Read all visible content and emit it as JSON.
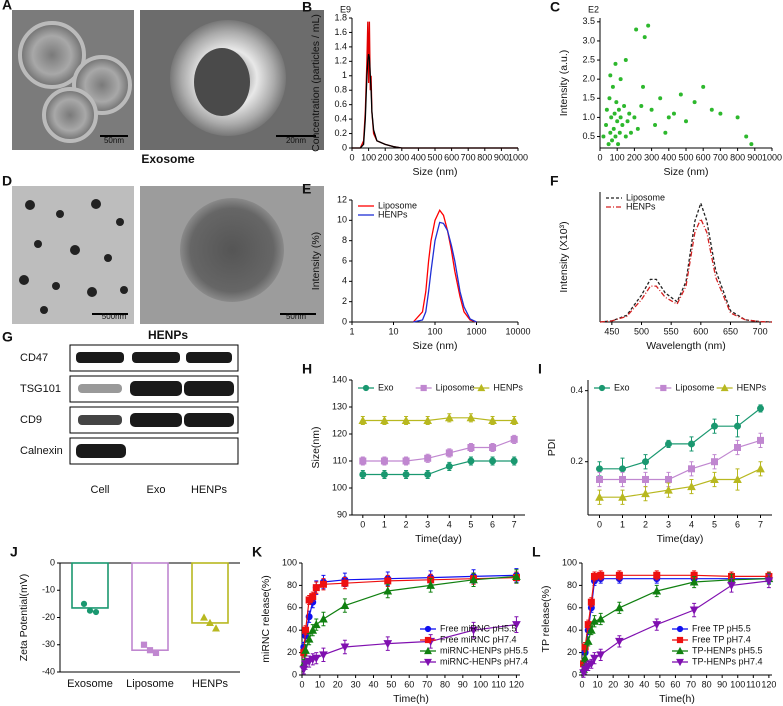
{
  "images": [
    {
      "label": "A",
      "caption": "Exosome",
      "scale_bars": [
        "50nm",
        "20nm"
      ]
    },
    {
      "label": "D",
      "caption": "HENPs",
      "scale_bars": [
        "500nm",
        "50nm"
      ]
    }
  ],
  "western_blot": {
    "label": "G",
    "proteins": [
      "CD47",
      "TSG101",
      "CD9",
      "Calnexin"
    ],
    "lanes": [
      "Cell",
      "Exo",
      "HENPs"
    ]
  },
  "chart_data": [
    {
      "type": "line",
      "label": "B",
      "axis_note": "E9",
      "xlabel": "Size (nm)",
      "ylabel": "Concentration (particles / mL)",
      "x": [
        0,
        50,
        70,
        80,
        90,
        95,
        100,
        105,
        110,
        115,
        120,
        130,
        150,
        200,
        250,
        300,
        1000
      ],
      "series": [
        {
          "name": null,
          "color": "#e00000",
          "values": [
            0,
            0,
            0.1,
            0.5,
            1.2,
            1.75,
            0.9,
            1.75,
            0.8,
            1.0,
            0.5,
            0.2,
            0.1,
            0.05,
            0.02,
            0,
            0
          ]
        },
        {
          "name": null,
          "color": "#000000",
          "values": [
            0,
            0,
            0.05,
            0.4,
            1.0,
            1.2,
            1.3,
            1.25,
            1.0,
            0.8,
            0.5,
            0.25,
            0.1,
            0.05,
            0.02,
            0,
            0
          ]
        }
      ],
      "xlim": [
        0,
        1000
      ],
      "xticks": [
        0,
        100,
        200,
        300,
        400,
        500,
        600,
        700,
        800,
        900,
        1000
      ],
      "ylim": [
        0,
        1.8
      ],
      "yticks": [
        0,
        0.2,
        0.4,
        0.6,
        0.8,
        1,
        1.2,
        1.4,
        1.6,
        1.8
      ]
    },
    {
      "type": "scatter",
      "label": "C",
      "axis_note": "E2",
      "xlabel": "Size (nm)",
      "ylabel": "Intensity (a.u.)",
      "color": "#2db82d",
      "x": [
        20,
        35,
        40,
        50,
        55,
        60,
        65,
        70,
        75,
        80,
        85,
        90,
        95,
        100,
        105,
        110,
        115,
        120,
        130,
        140,
        150,
        160,
        170,
        180,
        200,
        220,
        240,
        260,
        280,
        300,
        320,
        350,
        380,
        400,
        430,
        470,
        500,
        550,
        600,
        650,
        700,
        800,
        850,
        880,
        60,
        90,
        120,
        150,
        250,
        210
      ],
      "values": [
        0.5,
        0.8,
        1.2,
        0.3,
        1.5,
        0.6,
        1.0,
        0.4,
        1.8,
        0.7,
        1.1,
        0.5,
        1.4,
        0.9,
        0.3,
        1.2,
        0.6,
        1.0,
        0.8,
        1.3,
        0.5,
        0.9,
        1.1,
        0.6,
        1.0,
        0.7,
        1.3,
        3.1,
        3.4,
        1.2,
        0.8,
        1.5,
        0.6,
        1.0,
        1.1,
        1.6,
        0.9,
        1.4,
        1.8,
        1.2,
        1.1,
        1.0,
        0.5,
        0.3,
        2.1,
        2.4,
        2.0,
        2.5,
        1.8,
        3.3
      ],
      "xlim": [
        0,
        1000
      ],
      "xticks": [
        0,
        100,
        200,
        300,
        400,
        500,
        600,
        700,
        800,
        900,
        1000
      ],
      "ylim": [
        0.2,
        3.6
      ],
      "yticks": [
        0.5,
        {
          "value": 1,
          "label": "1.0"
        },
        1.5,
        {
          "value": 2,
          "label": "2.0"
        },
        2.5,
        {
          "value": 3,
          "label": "3.0"
        },
        3.5
      ]
    },
    {
      "type": "line",
      "label": "E",
      "xlabel": "Size (nm)",
      "ylabel": "Intensity (%)",
      "xlog": true,
      "legend": "upper left",
      "x": [
        30,
        50,
        60,
        70,
        80,
        100,
        130,
        160,
        200,
        250,
        300,
        400,
        500,
        700,
        1000
      ],
      "series": [
        {
          "name": "Liposome",
          "color": "#ff0000",
          "values": [
            0,
            1,
            3,
            6,
            8,
            10,
            11,
            10.5,
            9,
            7,
            5,
            2.5,
            1,
            0.2,
            0
          ]
        },
        {
          "name": "HENPs",
          "color": "#1f2fd6",
          "values": [
            0,
            0.2,
            1,
            3,
            5,
            8,
            9.8,
            9.7,
            9,
            7.5,
            6,
            3,
            1.5,
            0.3,
            0
          ]
        }
      ],
      "xlim": [
        1,
        10000
      ],
      "xticks": [
        1,
        10,
        100,
        1000,
        10000
      ],
      "ylim": [
        0,
        12
      ],
      "yticks": [
        0,
        2,
        4,
        6,
        8,
        10,
        12
      ]
    },
    {
      "type": "line",
      "label": "F",
      "xlabel": "Wavelength (nm)",
      "ylabel": "Intensity (X10³)",
      "legend": "upper left",
      "x": [
        430,
        450,
        475,
        500,
        515,
        525,
        540,
        560,
        575,
        590,
        600,
        610,
        625,
        650,
        675,
        700,
        720
      ],
      "series": [
        {
          "name": "Liposome",
          "color": "#222222",
          "dash": "3 2",
          "values": [
            0,
            0.05,
            0.3,
            1.2,
            1.9,
            1.9,
            1.3,
            0.9,
            1.8,
            4.5,
            5.3,
            4.5,
            2.3,
            0.5,
            0.1,
            0.02,
            0
          ]
        },
        {
          "name": "HENPs",
          "color": "#d42020",
          "dash": "5 2 1 2",
          "values": [
            0,
            0.05,
            0.25,
            1.0,
            1.6,
            1.6,
            1.1,
            0.8,
            1.6,
            4.0,
            4.6,
            4.0,
            2.0,
            0.4,
            0.1,
            0.02,
            0
          ]
        }
      ],
      "xlim": [
        430,
        720
      ],
      "xticks": [
        450,
        500,
        550,
        600,
        650,
        700
      ],
      "ylim": [
        0,
        5.8
      ]
    },
    {
      "type": "line",
      "label": "H",
      "xlabel": "Time(day)",
      "ylabel": "Size(nm)",
      "legend": "top",
      "x": [
        0,
        1,
        2,
        3,
        4,
        5,
        6,
        7
      ],
      "series": [
        {
          "name": "Exo",
          "color": "#1a9870",
          "marker": "circle",
          "values": [
            105,
            105,
            105,
            105,
            108,
            110,
            110,
            110
          ],
          "errors": [
            1.5,
            1.5,
            1.5,
            1.5,
            1.5,
            1.5,
            1.5,
            1.5
          ]
        },
        {
          "name": "Liposome",
          "color": "#c087d0",
          "marker": "square",
          "values": [
            110,
            110,
            110,
            111,
            113,
            115,
            115,
            118
          ],
          "errors": [
            1.5,
            1.5,
            1.5,
            1.5,
            1.5,
            1.5,
            1.5,
            1.5
          ]
        },
        {
          "name": "HENPs",
          "color": "#b8b820",
          "marker": "triangle",
          "values": [
            125,
            125,
            125,
            125,
            126,
            126,
            125,
            125
          ],
          "errors": [
            1.5,
            1.5,
            1.5,
            1.5,
            1.5,
            1.5,
            1.5,
            1.5
          ]
        }
      ],
      "xlim": [
        -0.5,
        7.5
      ],
      "xticks": [
        0,
        1,
        2,
        3,
        4,
        5,
        6,
        7
      ],
      "ylim": [
        90,
        140
      ],
      "yticks": [
        90,
        100,
        110,
        120,
        130,
        140
      ]
    },
    {
      "type": "line",
      "label": "I",
      "xlabel": "Time(day)",
      "ylabel": "PDI",
      "legend": "top",
      "x": [
        0,
        1,
        2,
        3,
        4,
        5,
        6,
        7
      ],
      "series": [
        {
          "name": "Exo",
          "color": "#1a9870",
          "marker": "circle",
          "values": [
            0.18,
            0.18,
            0.2,
            0.25,
            0.25,
            0.3,
            0.3,
            0.35
          ],
          "errors": [
            0.02,
            0.03,
            0.02,
            0.01,
            0.02,
            0.02,
            0.03,
            0.01
          ]
        },
        {
          "name": "Liposome",
          "color": "#c087d0",
          "marker": "square",
          "values": [
            0.15,
            0.15,
            0.15,
            0.15,
            0.18,
            0.2,
            0.24,
            0.26
          ],
          "errors": [
            0.02,
            0.02,
            0.02,
            0.02,
            0.02,
            0.02,
            0.02,
            0.02
          ]
        },
        {
          "name": "HENPs",
          "color": "#b8b820",
          "marker": "triangle",
          "values": [
            0.1,
            0.1,
            0.11,
            0.12,
            0.13,
            0.15,
            0.15,
            0.18
          ],
          "errors": [
            0.02,
            0.02,
            0.02,
            0.02,
            0.02,
            0.02,
            0.03,
            0.02
          ]
        }
      ],
      "xlim": [
        -0.5,
        7.5
      ],
      "xticks": [
        0,
        1,
        2,
        3,
        4,
        5,
        6,
        7
      ],
      "ylim": [
        0.05,
        0.43
      ],
      "yticks": [
        0.2,
        0.4
      ]
    },
    {
      "type": "bar",
      "label": "J",
      "ylabel": "Zeta Potential(mV)",
      "categories": [
        "Exosome",
        "Liposome",
        "HENPs"
      ],
      "values": [
        -16.5,
        -32,
        -22
      ],
      "colors": [
        "#1a9870",
        "#c087d0",
        "#b8b820"
      ],
      "markers": [
        "circle",
        "square",
        "triangle"
      ],
      "points": [
        [
          -15,
          -17.5,
          -18
        ],
        [
          -30,
          -32,
          -33
        ],
        [
          -20,
          -22,
          -24
        ]
      ],
      "ylim": [
        -40,
        0
      ],
      "yticks": [
        0,
        -10,
        -20,
        -30,
        -40
      ]
    },
    {
      "type": "line",
      "label": "K",
      "xlabel": "Time(h)",
      "ylabel": "miRNC release(%)",
      "legend": "lower right",
      "x": [
        1,
        2,
        4,
        6,
        8,
        12,
        24,
        48,
        72,
        96,
        120
      ],
      "series": [
        {
          "name": "Free miRNC pH5.5",
          "color": "#1010f0",
          "marker": "circle",
          "values": [
            25,
            35,
            52,
            65,
            78,
            83,
            85,
            86,
            87,
            88,
            89
          ],
          "errors": [
            4,
            5,
            5,
            5,
            6,
            6,
            6,
            6,
            6,
            6,
            6
          ]
        },
        {
          "name": "Free miRNC pH7.4",
          "color": "#ee1010",
          "marker": "square",
          "values": [
            20,
            40,
            67,
            70,
            78,
            81,
            82,
            84,
            85,
            86,
            87
          ],
          "errors": [
            4,
            4,
            4,
            4,
            5,
            5,
            5,
            5,
            5,
            5,
            5
          ]
        },
        {
          "name": "miRNC-HENPs pH5.5",
          "color": "#108010",
          "marker": "triangle",
          "values": [
            10,
            22,
            32,
            40,
            45,
            50,
            62,
            75,
            80,
            85,
            88
          ],
          "errors": [
            4,
            5,
            5,
            5,
            5,
            6,
            6,
            6,
            6,
            6,
            6
          ]
        },
        {
          "name": "miRNC-HENPs pH7.4",
          "color": "#8010b0",
          "marker": "triangle-down",
          "values": [
            5,
            10,
            12,
            14,
            15,
            18,
            25,
            28,
            30,
            40,
            45
          ],
          "errors": [
            4,
            5,
            5,
            5,
            5,
            6,
            6,
            6,
            6,
            7,
            7
          ]
        }
      ],
      "xlim": [
        0,
        122
      ],
      "xticks": [
        0,
        10,
        20,
        30,
        40,
        50,
        60,
        70,
        80,
        90,
        100,
        110,
        120
      ],
      "ylim": [
        0,
        100
      ],
      "yticks": [
        0,
        20,
        40,
        60,
        80,
        100
      ]
    },
    {
      "type": "line",
      "label": "L",
      "xlabel": "Time(h)",
      "ylabel": "TP release(%)",
      "legend": "lower right",
      "x": [
        1,
        2,
        4,
        6,
        8,
        12,
        24,
        48,
        72,
        96,
        120
      ],
      "series": [
        {
          "name": "Free TP pH5.5",
          "color": "#1010f0",
          "marker": "circle",
          "values": [
            10,
            20,
            40,
            60,
            84,
            86,
            86,
            86,
            86,
            86,
            86
          ],
          "errors": [
            4,
            4,
            4,
            4,
            4,
            4,
            4,
            4,
            4,
            4,
            4
          ]
        },
        {
          "name": "Free TP pH7.4",
          "color": "#ee1010",
          "marker": "square",
          "values": [
            10,
            25,
            45,
            65,
            88,
            89,
            89,
            89,
            89,
            88,
            88
          ],
          "errors": [
            4,
            4,
            4,
            4,
            4,
            4,
            4,
            4,
            4,
            4,
            4
          ]
        },
        {
          "name": "TP-HENPs pH5.5",
          "color": "#108010",
          "marker": "triangle",
          "values": [
            5,
            15,
            30,
            40,
            48,
            50,
            60,
            75,
            83,
            85,
            86
          ],
          "errors": [
            4,
            4,
            4,
            4,
            5,
            5,
            5,
            5,
            5,
            5,
            5
          ]
        },
        {
          "name": "TP-HENPs pH7.4",
          "color": "#8010b0",
          "marker": "triangle-down",
          "values": [
            2,
            5,
            8,
            10,
            15,
            18,
            30,
            45,
            58,
            80,
            84
          ],
          "errors": [
            4,
            4,
            4,
            4,
            5,
            5,
            5,
            5,
            6,
            6,
            6
          ]
        }
      ],
      "xlim": [
        0,
        122
      ],
      "xticks": [
        0,
        10,
        20,
        30,
        40,
        50,
        60,
        70,
        80,
        90,
        100,
        110,
        120
      ],
      "ylim": [
        0,
        100
      ],
      "yticks": [
        0,
        20,
        40,
        60,
        80,
        100
      ]
    }
  ]
}
